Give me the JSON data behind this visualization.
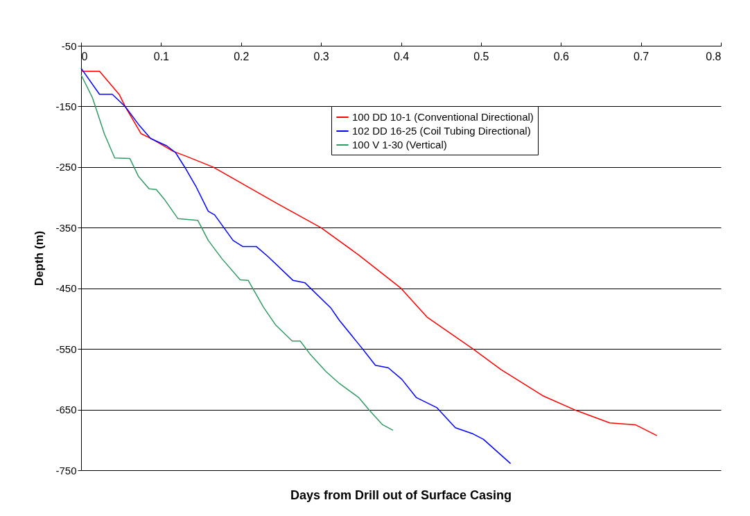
{
  "chart_data": {
    "type": "line",
    "xlabel": "Days from Drill out of Surface Casing",
    "ylabel": "Depth (m)",
    "xlim": [
      0,
      0.8
    ],
    "xticks": [
      0,
      0.1,
      0.2,
      0.3,
      0.4,
      0.5,
      0.6,
      0.7,
      0.8
    ],
    "ylim": [
      -750,
      -50
    ],
    "yticks": [
      -750,
      -650,
      -550,
      -450,
      -350,
      -250,
      -150,
      -50
    ],
    "grid": "y",
    "legend": "top right",
    "line_style": "solid",
    "series": [
      {
        "name": "100 DD 10-1 (Conventional Directional)",
        "color": "#ff0000",
        "x": [
          0,
          0.023,
          0.048,
          0.055,
          0.075,
          0.089,
          0.115,
          0.131,
          0.165,
          0.205,
          0.245,
          0.3,
          0.347,
          0.4,
          0.433,
          0.49,
          0.525,
          0.577,
          0.62,
          0.661,
          0.693,
          0.72
        ],
        "values": [
          -92,
          -92,
          -131,
          -150,
          -195,
          -204,
          -224,
          -232,
          -250,
          -280,
          -310,
          -350,
          -395,
          -450,
          -498,
          -550,
          -584,
          -627,
          -652,
          -672,
          -675,
          -693
        ]
      },
      {
        "name": "102 DD 16-25 (Coil Tubing Directional)",
        "color": "#0000ff",
        "x": [
          0,
          0.023,
          0.039,
          0.055,
          0.072,
          0.087,
          0.107,
          0.118,
          0.13,
          0.144,
          0.159,
          0.167,
          0.19,
          0.202,
          0.219,
          0.234,
          0.265,
          0.28,
          0.312,
          0.323,
          0.352,
          0.368,
          0.384,
          0.401,
          0.419,
          0.445,
          0.468,
          0.49,
          0.503,
          0.537
        ],
        "values": [
          -87,
          -130,
          -130,
          -150,
          -180,
          -203,
          -215,
          -226,
          -251,
          -283,
          -323,
          -329,
          -371,
          -381,
          -381,
          -398,
          -437,
          -441,
          -482,
          -503,
          -550,
          -577,
          -581,
          -600,
          -630,
          -647,
          -680,
          -690,
          -699,
          -739
        ]
      },
      {
        "name": "100 V 1-30 (Vertical)",
        "color": "#339966",
        "x": [
          0,
          0.014,
          0.029,
          0.042,
          0.061,
          0.072,
          0.085,
          0.094,
          0.104,
          0.121,
          0.146,
          0.159,
          0.176,
          0.199,
          0.209,
          0.228,
          0.243,
          0.264,
          0.274,
          0.286,
          0.306,
          0.323,
          0.347,
          0.361,
          0.377,
          0.39
        ],
        "values": [
          -98,
          -135,
          -195,
          -235,
          -236,
          -266,
          -286,
          -287,
          -303,
          -335,
          -338,
          -371,
          -401,
          -436,
          -437,
          -481,
          -510,
          -537,
          -537,
          -558,
          -587,
          -607,
          -630,
          -652,
          -675,
          -684
        ]
      }
    ]
  }
}
